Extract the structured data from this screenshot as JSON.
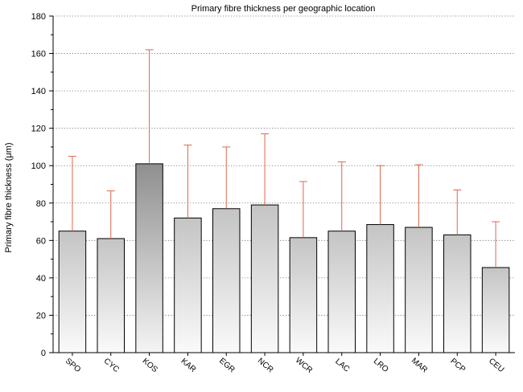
{
  "chart_data": {
    "type": "bar",
    "title": "Primary fibre thickness per geographic location",
    "ylabel": "Primary fibre thickness (μm)",
    "xlabel": "",
    "ylim": [
      0,
      180
    ],
    "yticks": [
      0,
      20,
      40,
      60,
      80,
      100,
      120,
      140,
      160,
      180
    ],
    "grid": "horizontal-dotted",
    "categories": [
      "SPO",
      "CYC",
      "KOS",
      "KAR",
      "EGR",
      "NCR",
      "WCR",
      "LAC",
      "LRO",
      "MAR",
      "PCP",
      "CEU"
    ],
    "values": [
      65,
      61,
      101,
      72,
      77,
      79,
      61.5,
      65,
      68.5,
      67,
      63,
      45.5
    ],
    "error_upper": [
      105,
      86.5,
      162,
      111,
      110,
      117,
      91.5,
      102,
      100,
      100.5,
      87,
      70
    ],
    "colors": {
      "bar_top": "#c4c4c4",
      "bar_bottom": "#fafafa",
      "bar_highlight_top": "#8f8f8f",
      "bar_highlight_bottom": "#f4f4f4",
      "error_bar": "#e0664a",
      "grid": "#6a6a6a"
    }
  }
}
